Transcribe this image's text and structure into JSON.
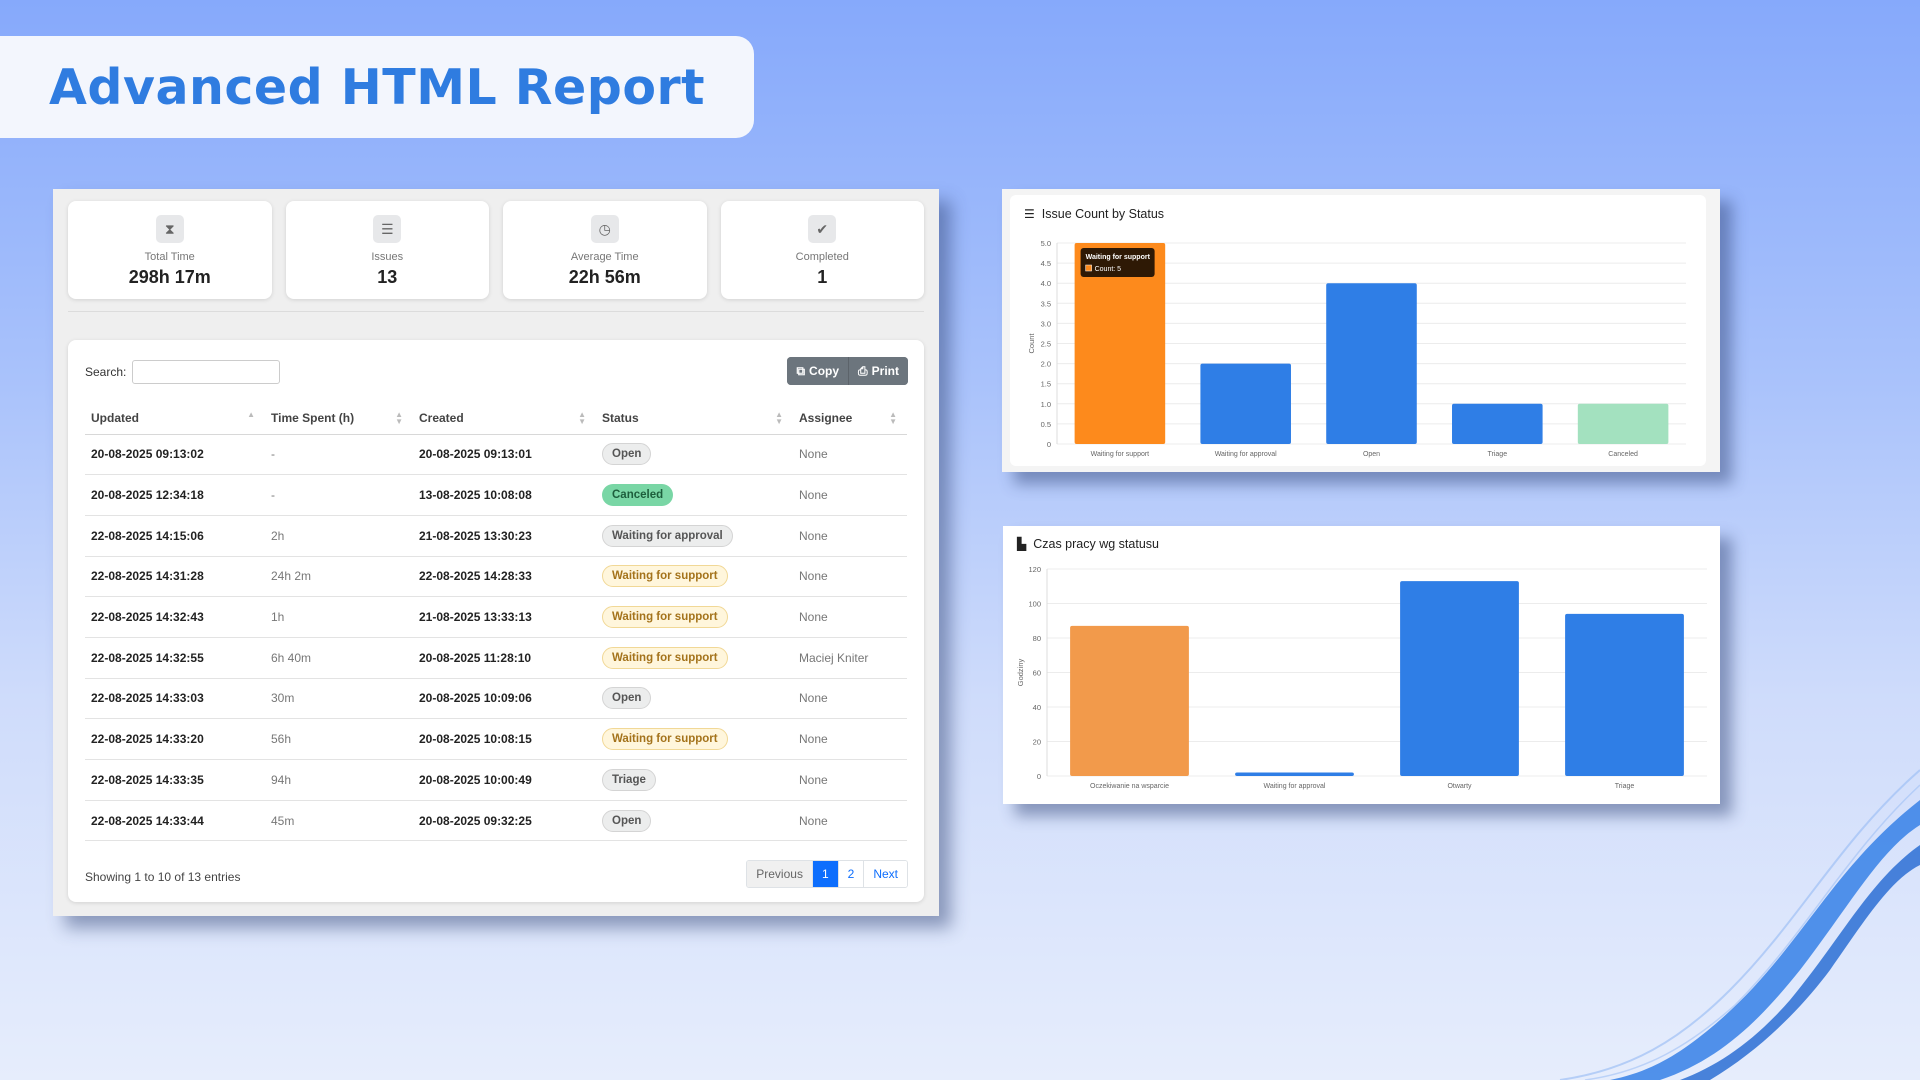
{
  "title": "Advanced HTML Report",
  "stats": [
    {
      "label": "Total Time",
      "value": "298h 17m",
      "icon": "hourglass-icon"
    },
    {
      "label": "Issues",
      "value": "13",
      "icon": "list-icon"
    },
    {
      "label": "Average Time",
      "value": "22h 56m",
      "icon": "clock-icon"
    },
    {
      "label": "Completed",
      "value": "1",
      "icon": "check-circle-icon"
    }
  ],
  "table": {
    "search_label": "Search:",
    "search_value": "",
    "copy_label": "Copy",
    "print_label": "Print",
    "columns": [
      "Updated",
      "Time Spent (h)",
      "Created",
      "Status",
      "Assignee"
    ],
    "rows": [
      {
        "updated": "20-08-2025 09:13:02",
        "time": "-",
        "created": "20-08-2025 09:13:01",
        "status": "Open",
        "assignee": "None"
      },
      {
        "updated": "20-08-2025 12:34:18",
        "time": "-",
        "created": "13-08-2025 10:08:08",
        "status": "Canceled",
        "assignee": "None"
      },
      {
        "updated": "22-08-2025 14:15:06",
        "time": "2h",
        "created": "21-08-2025 13:30:23",
        "status": "Waiting for approval",
        "assignee": "None"
      },
      {
        "updated": "22-08-2025 14:31:28",
        "time": "24h 2m",
        "created": "22-08-2025 14:28:33",
        "status": "Waiting for support",
        "assignee": "None"
      },
      {
        "updated": "22-08-2025 14:32:43",
        "time": "1h",
        "created": "21-08-2025 13:33:13",
        "status": "Waiting for support",
        "assignee": "None"
      },
      {
        "updated": "22-08-2025 14:32:55",
        "time": "6h 40m",
        "created": "20-08-2025 11:28:10",
        "status": "Waiting for support",
        "assignee": "Maciej Kniter"
      },
      {
        "updated": "22-08-2025 14:33:03",
        "time": "30m",
        "created": "20-08-2025 10:09:06",
        "status": "Open",
        "assignee": "None"
      },
      {
        "updated": "22-08-2025 14:33:20",
        "time": "56h",
        "created": "20-08-2025 10:08:15",
        "status": "Waiting for support",
        "assignee": "None"
      },
      {
        "updated": "22-08-2025 14:33:35",
        "time": "94h",
        "created": "20-08-2025 10:00:49",
        "status": "Triage",
        "assignee": "None"
      },
      {
        "updated": "22-08-2025 14:33:44",
        "time": "45m",
        "created": "20-08-2025 09:32:25",
        "status": "Open",
        "assignee": "None"
      }
    ],
    "info": "Showing 1 to 10 of 13 entries",
    "pagination": {
      "previous": "Previous",
      "pages": [
        "1",
        "2"
      ],
      "current": "1",
      "next": "Next"
    }
  },
  "chart_data": [
    {
      "type": "bar",
      "title": "Issue Count by Status",
      "ylabel": "Count",
      "categories": [
        "Waiting for support",
        "Waiting for approval",
        "Open",
        "Triage",
        "Canceled"
      ],
      "values": [
        5,
        2,
        4,
        1,
        1
      ],
      "colors": [
        "#fd8a1c",
        "#2f7ee6",
        "#2f7ee6",
        "#2f7ee6",
        "#a3e1bf"
      ],
      "ylim": [
        0,
        5
      ],
      "yticks": [
        "0",
        "0.5",
        "1.0",
        "1.5",
        "2.0",
        "2.5",
        "3.0",
        "3.5",
        "4.0",
        "4.5",
        "5.0"
      ],
      "tooltip": {
        "title": "Waiting for support",
        "text": "Count: 5"
      }
    },
    {
      "type": "bar",
      "title": "Czas pracy wg statusu",
      "ylabel": "Godziny",
      "categories": [
        "Oczekiwanie na wsparcie",
        "Waiting for approval",
        "Otwarty",
        "Triage"
      ],
      "values": [
        87,
        2,
        113,
        94
      ],
      "colors": [
        "#f29a4b",
        "#2f7ee6",
        "#2f7ee6",
        "#2f7ee6"
      ],
      "ylim": [
        0,
        120
      ],
      "yticks": [
        "0",
        "20",
        "40",
        "60",
        "80",
        "100",
        "120"
      ]
    }
  ]
}
